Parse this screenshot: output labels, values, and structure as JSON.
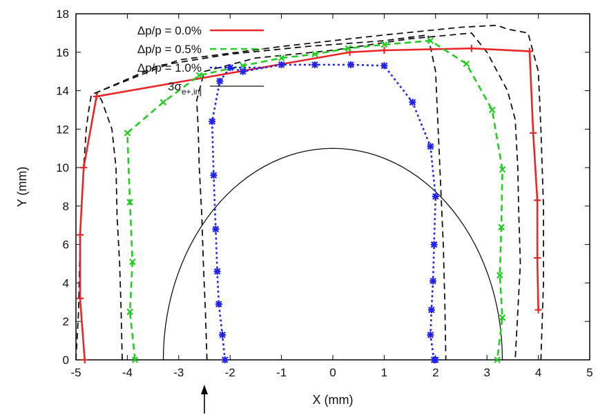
{
  "chart_data": {
    "type": "line",
    "xlabel": "X (mm)",
    "ylabel": "Y (mm)",
    "xlim": [
      -5,
      5
    ],
    "ylim": [
      0,
      18
    ],
    "xticks": [
      -5,
      -4,
      -3,
      -2,
      -1,
      0,
      1,
      2,
      3,
      4,
      5
    ],
    "yticks": [
      0,
      2,
      4,
      6,
      8,
      10,
      12,
      14,
      16,
      18
    ],
    "grid": false,
    "legend_position": "top-left",
    "series": [
      {
        "name": "Δp/p = 0.0%",
        "color": "#e8262a",
        "style": "solid",
        "marker": "plus",
        "x": [
          -4.83,
          -4.92,
          -4.92,
          -4.85,
          -4.6,
          0.33,
          1.0,
          2.7,
          3.83,
          3.9,
          3.98,
          3.98,
          4.0
        ],
        "y": [
          0,
          3.2,
          6.5,
          10.0,
          13.7,
          16.0,
          16.1,
          16.2,
          16.05,
          11.8,
          8.3,
          5.3,
          2.6
        ]
      },
      {
        "name": "Δp/p = 0.5%",
        "color": "#22cc22",
        "style": "dashed",
        "marker": "x",
        "x": [
          -3.85,
          -3.95,
          -3.9,
          -3.95,
          -4.0,
          -3.3,
          -2.6,
          -1.75,
          -1.0,
          -0.35,
          0.3,
          1.0,
          1.9,
          2.6,
          3.1,
          3.3,
          3.28,
          3.25,
          3.3,
          3.2
        ],
        "y": [
          0,
          2.5,
          5.1,
          8.2,
          11.8,
          13.4,
          14.8,
          15.3,
          15.7,
          15.9,
          16.2,
          16.4,
          16.6,
          15.4,
          13.0,
          9.9,
          6.9,
          4.4,
          2.2,
          0
        ]
      },
      {
        "name": "Δp/p = 1.0%",
        "color": "#2222ee",
        "style": "dotted",
        "marker": "star",
        "x": [
          -2.1,
          -2.15,
          -2.22,
          -2.25,
          -2.28,
          -2.32,
          -2.35,
          -2.2,
          -2.0,
          -1.75,
          -1.0,
          -0.35,
          0.35,
          1.0,
          1.55,
          1.9,
          2.0,
          1.97,
          1.95,
          1.92,
          1.9,
          1.97,
          2.0
        ],
        "y": [
          0,
          1.3,
          2.9,
          4.6,
          6.8,
          9.6,
          12.4,
          14.5,
          15.2,
          15.0,
          15.35,
          15.35,
          15.35,
          15.3,
          13.4,
          11.1,
          8.5,
          6.0,
          4.1,
          2.6,
          1.3,
          0.0,
          0
        ]
      }
    ],
    "extra_series": [
      {
        "name": "3σ_e+,inj",
        "color": "#111111",
        "style": "solid",
        "shape": "half-ellipse",
        "center": [
          0,
          0
        ],
        "rx": 3.3,
        "ry": 11.0
      },
      {
        "color": "#111111",
        "style": "dashed",
        "x": [
          -4.1,
          -4.12,
          -4.15,
          -4.2,
          -4.22,
          -4.3,
          -4.5,
          -4.6,
          -3.4,
          -2.0,
          -0.5,
          1.0,
          1.85,
          2.0,
          2.05,
          2.1,
          2.15,
          2.18,
          2.2
        ],
        "y": [
          0,
          2.5,
          5.0,
          7.5,
          10.0,
          12.0,
          13.5,
          13.9,
          15.3,
          15.9,
          16.3,
          16.6,
          16.9,
          15.0,
          12.0,
          9.0,
          6.0,
          3.0,
          0
        ]
      },
      {
        "color": "#111111",
        "style": "dashed",
        "x": [
          -2.45,
          -2.48,
          -2.52,
          -2.55,
          -2.6,
          -2.62,
          -2.65,
          -2.5,
          -1.5,
          0.0,
          1.5,
          2.7,
          3.0,
          3.4,
          3.55,
          3.6,
          3.62,
          3.65,
          3.6,
          3.55
        ],
        "y": [
          0,
          2.5,
          5.0,
          7.5,
          10.0,
          12.0,
          13.5,
          15.0,
          15.7,
          16.1,
          16.7,
          17.0,
          16.0,
          14.0,
          12.5,
          10.0,
          7.5,
          5.0,
          2.5,
          0
        ]
      },
      {
        "color": "#111111",
        "style": "dashed",
        "x": [
          -5.0,
          -4.95,
          -4.93,
          -4.9,
          -4.85,
          -4.8,
          -4.75,
          -4.7,
          -3.0,
          -1.0,
          1.0,
          2.5,
          3.2,
          3.4,
          3.8,
          4.0,
          4.05,
          4.1,
          4.1,
          4.05
        ],
        "y": [
          0,
          2.5,
          5.0,
          7.5,
          10.0,
          12.0,
          13.0,
          13.8,
          15.6,
          16.3,
          16.9,
          17.3,
          17.4,
          17.2,
          17.0,
          15.0,
          12.0,
          8.0,
          4.0,
          0
        ]
      }
    ],
    "legend": [
      {
        "label_main": "Δp/p = 0.0%",
        "sub": "",
        "color": "#e8262a",
        "style": "solid"
      },
      {
        "label_main": "Δp/p = 0.5%",
        "sub": "",
        "color": "#22cc22",
        "style": "dashed"
      },
      {
        "label_main": "Δp/p = 1.0%",
        "sub": "",
        "color": "#2222ee",
        "style": "dotted"
      },
      {
        "label_main": "3σ",
        "sub": "e+,inj",
        "color": "#111111",
        "style": "solid"
      }
    ],
    "annotation": {
      "type": "arrow",
      "x_data": -2.5,
      "direction": "up"
    }
  }
}
